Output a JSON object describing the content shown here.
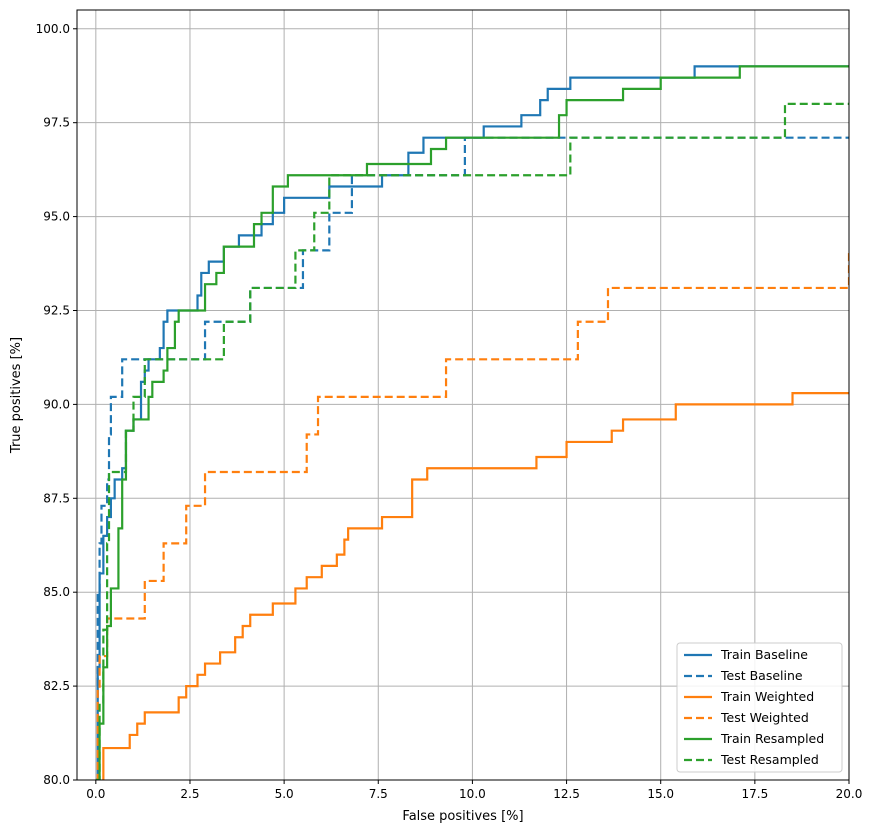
{
  "chart_data": {
    "type": "line",
    "title": "",
    "xlabel": "False positives [%]",
    "ylabel": "True positives [%]",
    "xlim": [
      -0.5,
      20.0
    ],
    "ylim": [
      80.0,
      100.5
    ],
    "xticks": [
      0.0,
      2.5,
      5.0,
      7.5,
      10.0,
      12.5,
      15.0,
      17.5,
      20.0
    ],
    "xtick_labels": [
      "0.0",
      "2.5",
      "5.0",
      "7.5",
      "10.0",
      "12.5",
      "15.0",
      "17.5",
      "20.0"
    ],
    "yticks": [
      80.0,
      82.5,
      85.0,
      87.5,
      90.0,
      92.5,
      95.0,
      97.5,
      100.0
    ],
    "ytick_labels": [
      "80.0",
      "82.5",
      "85.0",
      "87.5",
      "90.0",
      "92.5",
      "95.0",
      "97.5",
      "100.0"
    ],
    "grid": true,
    "legend_position": "bottom-right",
    "series": [
      {
        "name": "Train Baseline",
        "color": "#1f77b4",
        "dash": false,
        "points": [
          [
            0,
            80
          ],
          [
            0.05,
            83
          ],
          [
            0.1,
            85.5
          ],
          [
            0.2,
            86.5
          ],
          [
            0.3,
            87
          ],
          [
            0.4,
            87.5
          ],
          [
            0.5,
            88.0
          ],
          [
            0.7,
            88.3
          ],
          [
            0.8,
            89.3
          ],
          [
            1.0,
            89.6
          ],
          [
            1.2,
            90.6
          ],
          [
            1.3,
            90.9
          ],
          [
            1.4,
            91.2
          ],
          [
            1.7,
            91.5
          ],
          [
            1.8,
            92.2
          ],
          [
            1.9,
            92.5
          ],
          [
            2.7,
            92.9
          ],
          [
            2.8,
            93.5
          ],
          [
            3.0,
            93.8
          ],
          [
            3.4,
            94.2
          ],
          [
            3.8,
            94.5
          ],
          [
            4.4,
            94.8
          ],
          [
            4.7,
            95.1
          ],
          [
            5.0,
            95.5
          ],
          [
            6.2,
            95.8
          ],
          [
            7.6,
            96.1
          ],
          [
            8.3,
            96.4
          ],
          [
            8.3,
            96.7
          ],
          [
            8.7,
            97.1
          ],
          [
            10.3,
            97.4
          ],
          [
            11.3,
            97.7
          ],
          [
            11.8,
            98.1
          ],
          [
            12.0,
            98.4
          ],
          [
            12.6,
            98.7
          ],
          [
            15.9,
            99.0
          ],
          [
            20,
            99.0
          ]
        ]
      },
      {
        "name": "Test Baseline",
        "color": "#1f77b4",
        "dash": true,
        "points": [
          [
            0,
            80
          ],
          [
            0.05,
            85
          ],
          [
            0.1,
            86.3
          ],
          [
            0.15,
            87.3
          ],
          [
            0.3,
            88.0
          ],
          [
            0.35,
            89.2
          ],
          [
            0.4,
            90.2
          ],
          [
            0.7,
            91.2
          ],
          [
            2.9,
            92.2
          ],
          [
            4.1,
            93.1
          ],
          [
            5.5,
            94.1
          ],
          [
            6.2,
            95.1
          ],
          [
            6.8,
            96.1
          ],
          [
            9.8,
            97.1
          ],
          [
            20,
            97.1
          ]
        ]
      },
      {
        "name": "Train Weighted",
        "color": "#ff7f0e",
        "dash": false,
        "points": [
          [
            0.2,
            80
          ],
          [
            0.2,
            80.85
          ],
          [
            0.9,
            81.2
          ],
          [
            1.1,
            81.5
          ],
          [
            1.3,
            81.8
          ],
          [
            2.2,
            82.2
          ],
          [
            2.4,
            82.5
          ],
          [
            2.7,
            82.8
          ],
          [
            2.9,
            83.1
          ],
          [
            3.3,
            83.4
          ],
          [
            3.7,
            83.8
          ],
          [
            3.9,
            84.1
          ],
          [
            4.1,
            84.4
          ],
          [
            4.7,
            84.7
          ],
          [
            5.3,
            85.1
          ],
          [
            5.6,
            85.4
          ],
          [
            6.0,
            85.7
          ],
          [
            6.4,
            86.0
          ],
          [
            6.6,
            86.4
          ],
          [
            6.7,
            86.7
          ],
          [
            7.6,
            87.0
          ],
          [
            8.4,
            87.7
          ],
          [
            8.4,
            88.0
          ],
          [
            8.8,
            88.3
          ],
          [
            11.7,
            88.6
          ],
          [
            12.5,
            89.0
          ],
          [
            13.7,
            89.3
          ],
          [
            14.0,
            89.6
          ],
          [
            15.4,
            90.0
          ],
          [
            18.5,
            90.3
          ],
          [
            20,
            90.3
          ]
        ]
      },
      {
        "name": "Test Weighted",
        "color": "#ff7f0e",
        "dash": true,
        "points": [
          [
            0,
            80
          ],
          [
            0.05,
            82.4
          ],
          [
            0.1,
            83.3
          ],
          [
            0.3,
            84.3
          ],
          [
            1.3,
            85.3
          ],
          [
            1.8,
            86.3
          ],
          [
            2.4,
            87.3
          ],
          [
            2.9,
            88.2
          ],
          [
            5.6,
            89.2
          ],
          [
            5.9,
            90.2
          ],
          [
            9.3,
            91.2
          ],
          [
            12.8,
            92.2
          ],
          [
            13.6,
            93.1
          ],
          [
            20,
            94.1
          ]
        ]
      },
      {
        "name": "Train Resampled",
        "color": "#2ca02c",
        "dash": false,
        "points": [
          [
            0,
            80
          ],
          [
            0.1,
            81.5
          ],
          [
            0.2,
            83
          ],
          [
            0.3,
            84.1
          ],
          [
            0.4,
            85.1
          ],
          [
            0.6,
            86.7
          ],
          [
            0.7,
            88.0
          ],
          [
            0.8,
            89.3
          ],
          [
            1.0,
            89.6
          ],
          [
            1.4,
            90.2
          ],
          [
            1.5,
            90.6
          ],
          [
            1.8,
            90.9
          ],
          [
            1.9,
            91.5
          ],
          [
            2.1,
            92.2
          ],
          [
            2.2,
            92.5
          ],
          [
            2.9,
            93.2
          ],
          [
            3.2,
            93.5
          ],
          [
            3.4,
            94.2
          ],
          [
            4.2,
            94.8
          ],
          [
            4.4,
            95.1
          ],
          [
            4.7,
            95.8
          ],
          [
            5.1,
            96.1
          ],
          [
            7.2,
            96.4
          ],
          [
            8.9,
            96.8
          ],
          [
            9.3,
            97.1
          ],
          [
            12.3,
            97.7
          ],
          [
            12.5,
            98.1
          ],
          [
            14.0,
            98.4
          ],
          [
            15.0,
            98.7
          ],
          [
            17.1,
            99.0
          ],
          [
            20,
            99.0
          ]
        ]
      },
      {
        "name": "Test Resampled",
        "color": "#2ca02c",
        "dash": true,
        "points": [
          [
            0,
            80
          ],
          [
            0.1,
            82
          ],
          [
            0.2,
            84
          ],
          [
            0.3,
            86.3
          ],
          [
            0.35,
            88.2
          ],
          [
            0.8,
            89.3
          ],
          [
            1.0,
            90.2
          ],
          [
            1.3,
            91.2
          ],
          [
            3.4,
            92.2
          ],
          [
            4.1,
            93.1
          ],
          [
            5.3,
            94.1
          ],
          [
            5.8,
            95.1
          ],
          [
            6.2,
            96.1
          ],
          [
            12.6,
            97.1
          ],
          [
            18.3,
            98.0
          ],
          [
            20,
            98.0
          ]
        ]
      }
    ]
  }
}
